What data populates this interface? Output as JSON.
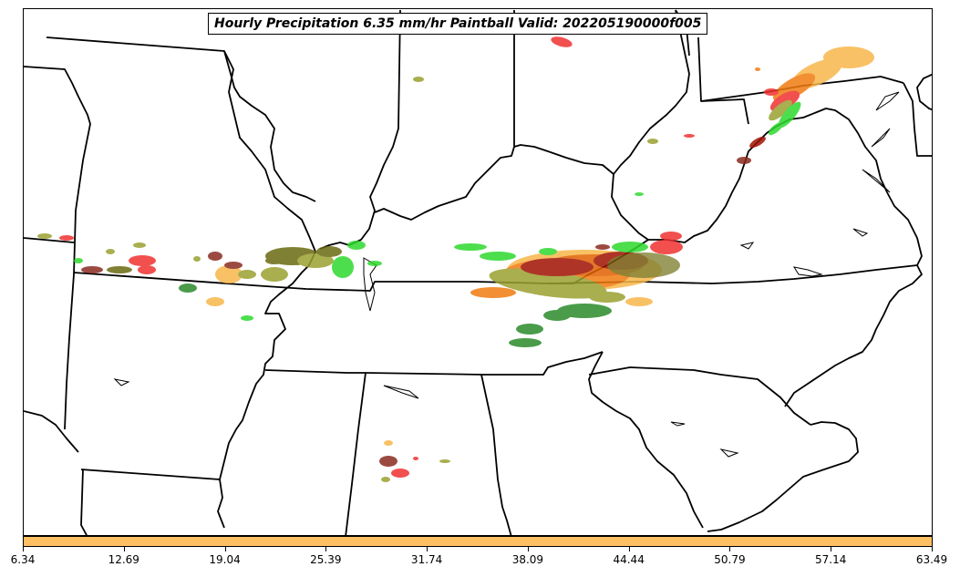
{
  "title": "Hourly Precipitation 6.35 mm/hr Paintball Valid: 202205190000f005",
  "colorbar": {
    "color": "#ffc064",
    "ticks": [
      "6.34",
      "12.69",
      "19.04",
      "25.39",
      "31.74",
      "38.09",
      "44.44",
      "50.79",
      "57.14",
      "63.49"
    ]
  },
  "colors": {
    "light_orange": "#f8b64a",
    "orange": "#f07a10",
    "dark_orange": "#e06000",
    "red": "#f03030",
    "dark_red": "#a01000",
    "green": "#2ed82e",
    "dark_green": "#2a8a2a",
    "olive": "#9aa030",
    "dark_olive": "#6a6a10",
    "maroon": "#8a2a20",
    "brown": "#7a3a2a"
  }
}
